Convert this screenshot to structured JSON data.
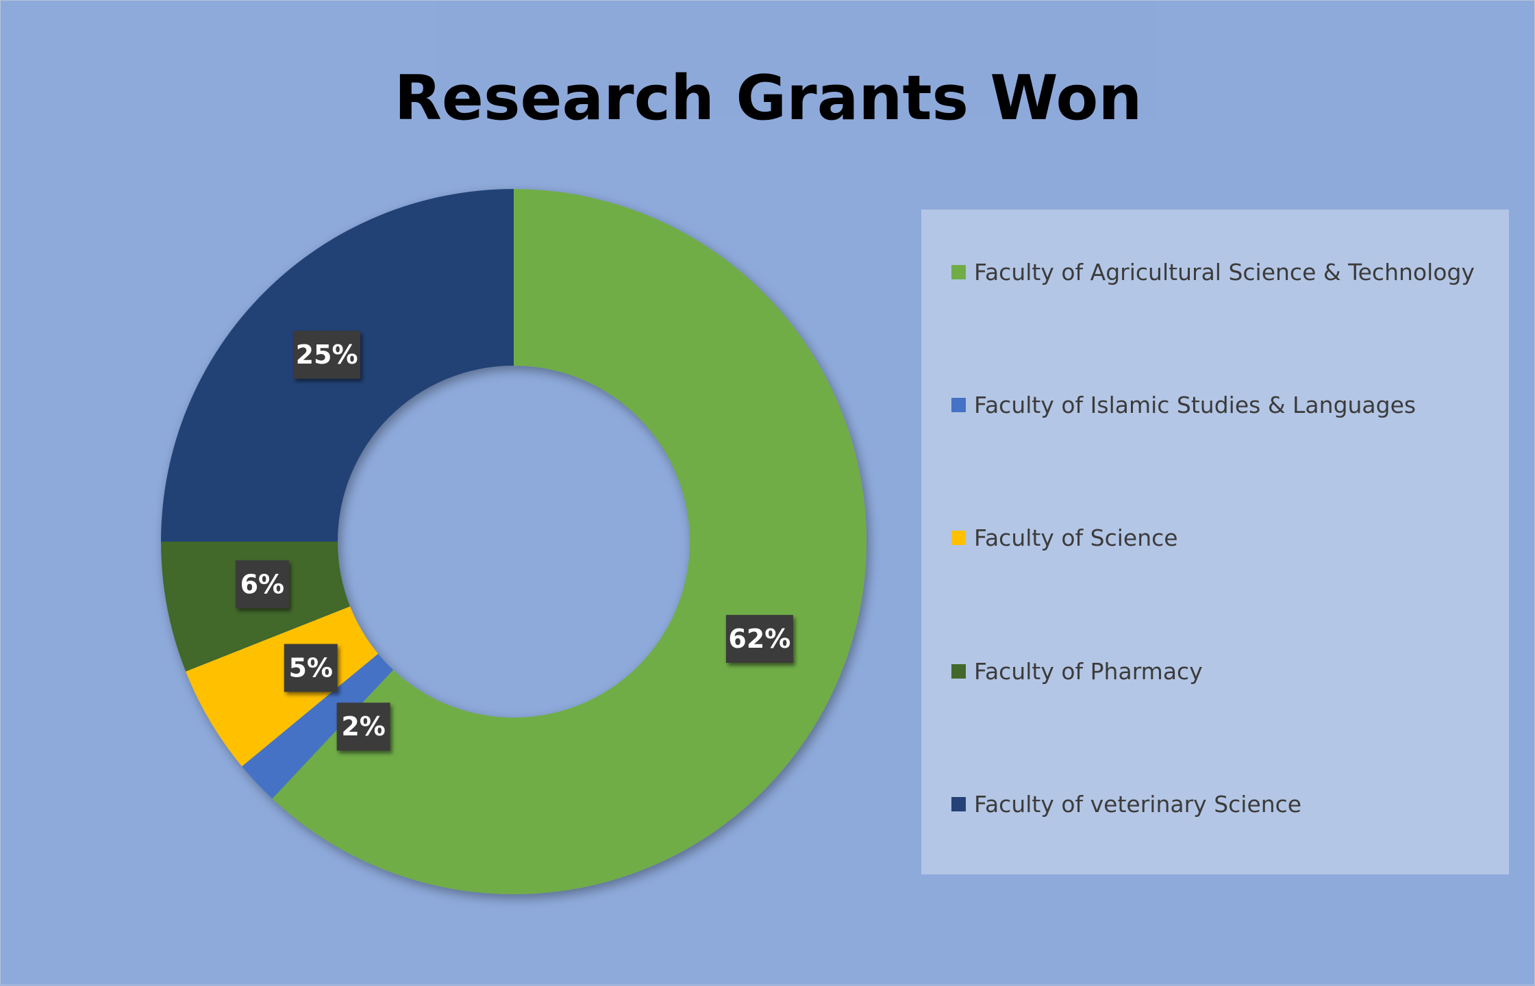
{
  "chart_data": {
    "type": "pie",
    "variant": "donut",
    "title": "Research Grants Won",
    "categories": [
      "Faculty of Agricultural Science & Technology",
      "Faculty of Islamic Studies & Languages",
      "Faculty of Science",
      "Faculty of Pharmacy",
      "Faculty of veterinary Science"
    ],
    "values": [
      62,
      2,
      5,
      6,
      25
    ],
    "data_labels": [
      "62%",
      "2%",
      "5%",
      "6%",
      "25%"
    ],
    "colors": [
      "#70ad47",
      "#4472c4",
      "#ffc000",
      "#43682b",
      "#244276"
    ],
    "legend_position": "right"
  }
}
